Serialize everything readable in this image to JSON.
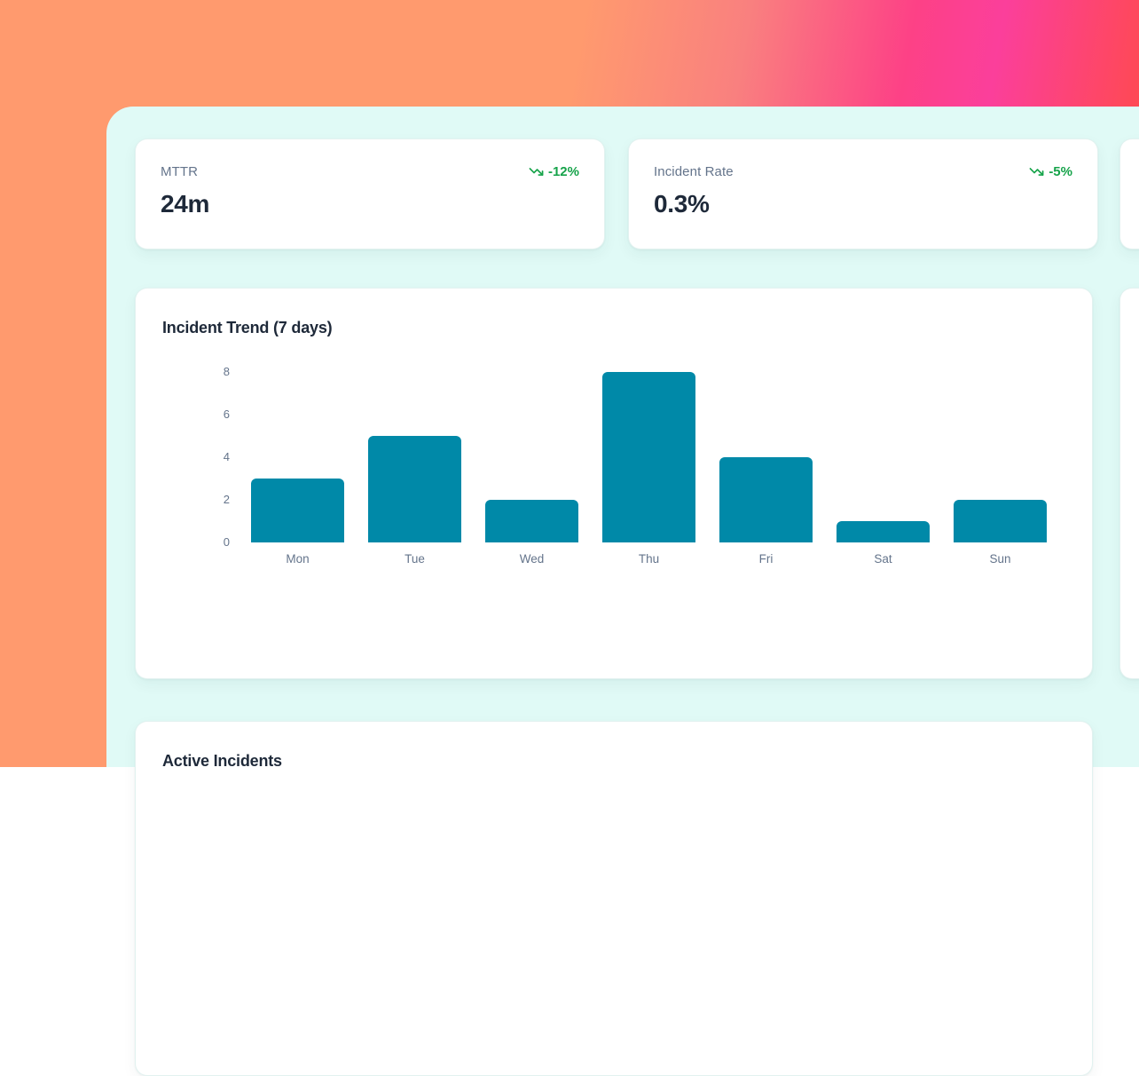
{
  "theme": {
    "bg_orange": "#ff9a6e",
    "bg_pink": "#fd4186",
    "bg_red": "#ff4a4d",
    "panel_bg": "#e0faf6",
    "card_bg": "#ffffff",
    "bar_teal": "#0089a8",
    "trend_green": "#16a34a",
    "label_gray": "#64748b",
    "heading_dark": "#1e2939"
  },
  "kpi_cards": [
    {
      "label": "MTTR",
      "value": "24m",
      "trend": "-12%",
      "trend_direction": "down",
      "icon": "trending-down-icon"
    },
    {
      "label": "Incident Rate",
      "value": "0.3%",
      "trend": "-5%",
      "trend_direction": "down",
      "icon": "trending-down-icon"
    }
  ],
  "chart_card": {
    "title": "Incident Trend (7 days)"
  },
  "chart_data": {
    "type": "bar",
    "title": "Incident Trend (7 days)",
    "categories": [
      "Mon",
      "Tue",
      "Wed",
      "Thu",
      "Fri",
      "Sat",
      "Sun"
    ],
    "values": [
      3,
      5,
      2,
      8,
      4,
      1,
      2
    ],
    "yticks": [
      0,
      2,
      4,
      6,
      8
    ],
    "ylim": [
      0,
      8
    ],
    "xlabel": "",
    "ylabel": "",
    "bar_color": "#0089a8",
    "grid": false,
    "legend": false
  },
  "incidents_card": {
    "title": "Active Incidents"
  }
}
